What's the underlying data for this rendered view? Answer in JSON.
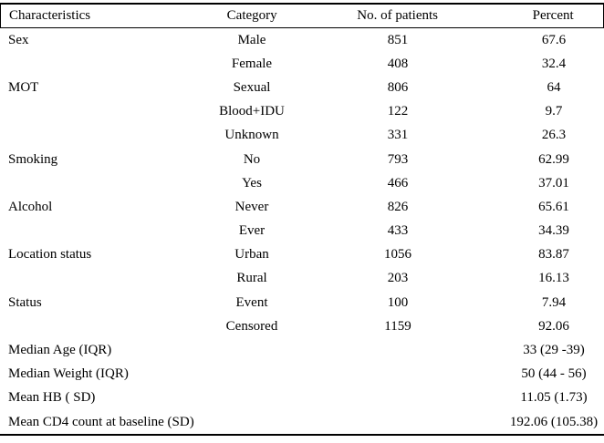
{
  "table": {
    "columns": [
      "Characteristics",
      "Category",
      "No. of patients",
      "Percent"
    ],
    "rows": [
      {
        "characteristic": "Sex",
        "category": "Male",
        "patients": "851",
        "percent": "67.6"
      },
      {
        "characteristic": "",
        "category": "Female",
        "patients": "408",
        "percent": "32.4"
      },
      {
        "characteristic": "MOT",
        "category": "Sexual",
        "patients": "806",
        "percent": "64"
      },
      {
        "characteristic": "",
        "category": "Blood+IDU",
        "patients": "122",
        "percent": "9.7"
      },
      {
        "characteristic": "",
        "category": "Unknown",
        "patients": "331",
        "percent": "26.3"
      },
      {
        "characteristic": "Smoking",
        "category": "No",
        "patients": "793",
        "percent": "62.99"
      },
      {
        "characteristic": "",
        "category": "Yes",
        "patients": "466",
        "percent": "37.01"
      },
      {
        "characteristic": "Alcohol",
        "category": "Never",
        "patients": "826",
        "percent": "65.61"
      },
      {
        "characteristic": "",
        "category": "Ever",
        "patients": "433",
        "percent": "34.39"
      },
      {
        "characteristic": "Location status",
        "category": "Urban",
        "patients": "1056",
        "percent": "83.87"
      },
      {
        "characteristic": "",
        "category": "Rural",
        "patients": "203",
        "percent": "16.13"
      },
      {
        "characteristic": "Status",
        "category": "Event",
        "patients": "100",
        "percent": "7.94"
      },
      {
        "characteristic": "",
        "category": "Censored",
        "patients": "1159",
        "percent": "92.06"
      },
      {
        "characteristic": "Median Age (IQR)",
        "category": "",
        "patients": "",
        "percent": "33 (29 -39)"
      },
      {
        "characteristic": "Median Weight (IQR)",
        "category": "",
        "patients": "",
        "percent": "50 (44 - 56)"
      },
      {
        "characteristic": "Mean HB ( SD)",
        "category": "",
        "patients": "",
        "percent": "11.05 (1.73)"
      },
      {
        "characteristic": "Mean CD4 count at baseline (SD)",
        "category": "",
        "patients": "",
        "percent": "192.06 (105.38)"
      }
    ]
  },
  "colors": {
    "text": "#000000",
    "border": "#000000",
    "background": "#ffffff"
  }
}
